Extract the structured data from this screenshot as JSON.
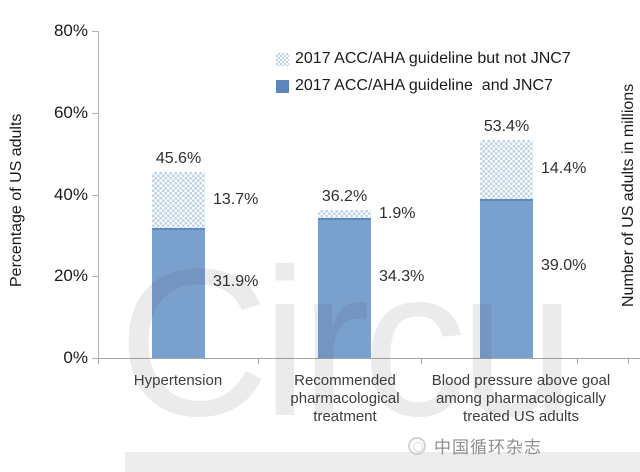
{
  "chart_data": {
    "type": "bar",
    "stacked": true,
    "title": "",
    "xlabel": "",
    "ylabel_left": "Percentage of US adults",
    "ylabel_right": "Number of US adults in millions",
    "ylim": [
      0,
      80
    ],
    "grid": false,
    "legend_position": "top-right",
    "y_ticks": [
      {
        "value": 0,
        "label": "0%"
      },
      {
        "value": 20,
        "label": "20%"
      },
      {
        "value": 40,
        "label": "40%"
      },
      {
        "value": 60,
        "label": "60%"
      },
      {
        "value": 80,
        "label": "80%"
      }
    ],
    "categories": [
      "Hypertension",
      "Recommended pharmacological treatment",
      "Blood pressure above goal among pharmacologically treated US adults"
    ],
    "categories_lines": [
      [
        "Hypertension"
      ],
      [
        "Recommended",
        "pharmacological",
        "treatment"
      ],
      [
        "Blood pressure above goal",
        "among pharmacologically",
        "treated US adults"
      ]
    ],
    "series": [
      {
        "name": "2017 ACC/AHA guideline but not JNC7",
        "style": "dotted-pattern",
        "color": "#bed3e8",
        "values": [
          13.7,
          1.9,
          14.4
        ],
        "labels": [
          "13.7%",
          "1.9%",
          "14.4%"
        ]
      },
      {
        "name": "2017 ACC/AHA guideline  and JNC7",
        "style": "solid",
        "color": "#7aa0ce",
        "values": [
          31.9,
          34.3,
          39.0
        ],
        "labels": [
          "31.9%",
          "34.3%",
          "39.0%"
        ]
      }
    ],
    "totals": [
      45.6,
      36.2,
      53.4
    ],
    "total_labels": [
      "45.6%",
      "36.2%",
      "53.4%"
    ]
  },
  "colors": {
    "bar_solid": "#7aa0ce",
    "bar_solid_edge": "#6088ba",
    "bar_dot": "#bed3e8",
    "axis_line": "#b3b3b3",
    "footer_band": "#ececec"
  },
  "watermark": {
    "text": "Circu"
  },
  "footer": {
    "journal_name": "中国循环杂志"
  }
}
